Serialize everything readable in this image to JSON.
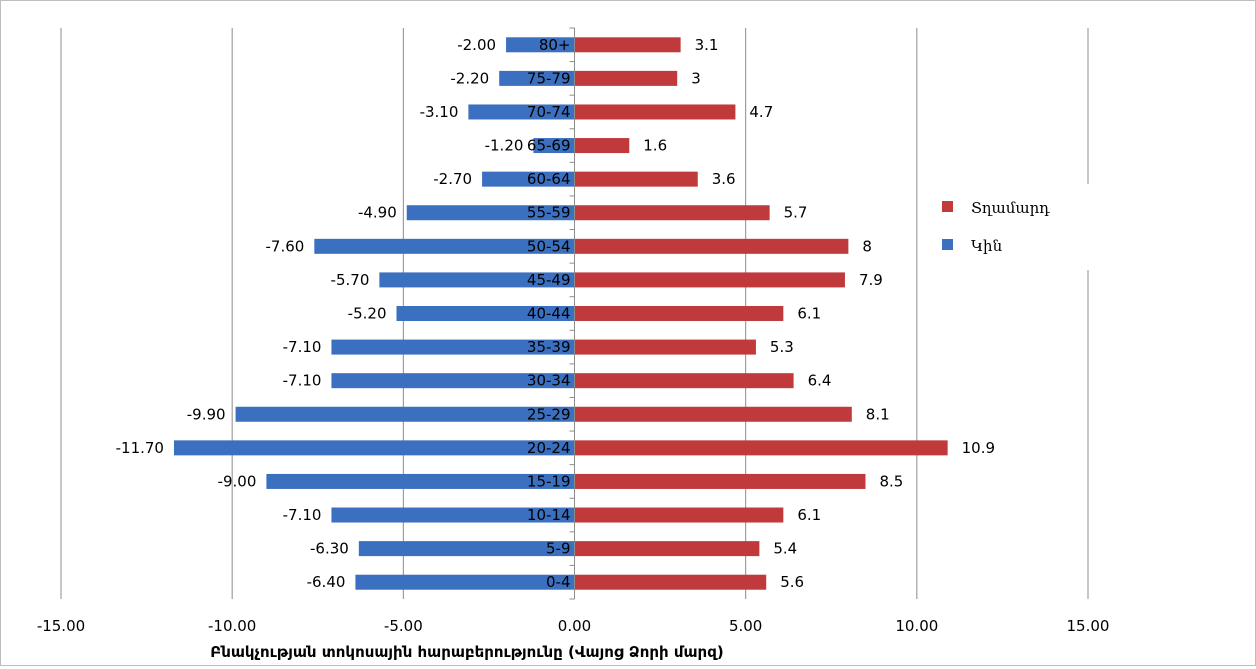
{
  "chart_data": {
    "type": "bar",
    "orientation": "horizontal",
    "title": "",
    "xlabel": "Բնակչության տոկոսային հարաբերությունը (Վայոց Ձորի մարզ)",
    "ylabel": "",
    "xlim": [
      -15,
      15
    ],
    "xticks": [
      "-15.00",
      "-10.00",
      "-5.00",
      "0.00",
      "5.00",
      "10.00",
      "15.00"
    ],
    "grid": true,
    "legend_position": "right",
    "categories": [
      "0-4",
      "5-9",
      "10-14",
      "15-19",
      "20-24",
      "25-29",
      "30-34",
      "35-39",
      "40-44",
      "45-49",
      "50-54",
      "55-59",
      "60-64",
      "65-69",
      "70-74",
      "75-79",
      "80+"
    ],
    "series": [
      {
        "name": "Տղամարդ",
        "color": "#c0393b",
        "values": [
          5.6,
          5.4,
          6.1,
          8.5,
          10.9,
          8.1,
          6.4,
          5.3,
          6.1,
          7.9,
          8,
          5.7,
          3.6,
          1.6,
          4.7,
          3,
          3.1
        ],
        "labels": [
          "5.6",
          "5.4",
          "6.1",
          "8.5",
          "10.9",
          "8.1",
          "6.4",
          "5.3",
          "6.1",
          "7.9",
          "8",
          "5.7",
          "3.6",
          "1.6",
          "4.7",
          "3",
          "3.1"
        ]
      },
      {
        "name": "Կին",
        "color": "#3b70c0",
        "values": [
          -6.4,
          -6.3,
          -7.1,
          -9.0,
          -11.7,
          -9.9,
          -7.1,
          -7.1,
          -5.2,
          -5.7,
          -7.6,
          -4.9,
          -2.7,
          -1.2,
          -3.1,
          -2.2,
          -2.0
        ],
        "labels": [
          "-6.40",
          "-6.30",
          "-7.10",
          "-9.00",
          "-11.70",
          "-9.90",
          "-7.10",
          "-7.10",
          "-5.20",
          "-5.70",
          "-7.60",
          "-4.90",
          "-2.70",
          "-1.20",
          "-3.10",
          "-2.20",
          "-2.00"
        ]
      }
    ]
  }
}
